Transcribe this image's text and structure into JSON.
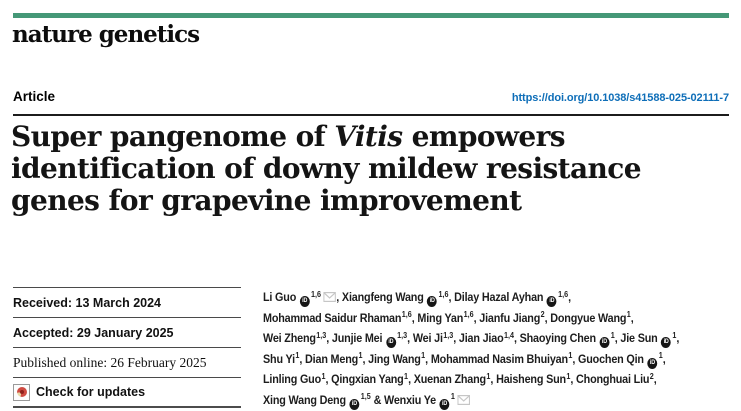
{
  "journal": {
    "masthead": "nature genetics"
  },
  "header": {
    "article_type": "Article",
    "doi": "https://doi.org/10.1038/s41588-025-02111-7"
  },
  "title": {
    "lines": [
      {
        "pre": "Super pangenome of ",
        "italic": "Vitis",
        "post": " empowers"
      },
      {
        "pre": "identification of downy mildew resistance",
        "italic": "",
        "post": ""
      },
      {
        "pre": "genes for grapevine improvement",
        "italic": "",
        "post": ""
      }
    ]
  },
  "meta": {
    "received": "Received: 13 March 2024",
    "accepted": "Accepted: 29 January 2025",
    "published_online": "Published online: 26 February 2025",
    "check_updates": "Check for updates"
  },
  "icons": {
    "orcid": "orcid-icon",
    "email": "email-icon",
    "crossmark": "crossmark-icon"
  },
  "authors": {
    "lines": [
      [
        {
          "name": "Li Guo",
          "orcid": true,
          "sup": "1,6",
          "mail": true
        },
        {
          "name": "Xiangfeng Wang",
          "orcid": true,
          "sup": "1,6",
          "mail": false
        },
        {
          "name": "Dilay Hazal Ayhan",
          "orcid": true,
          "sup": "1,6",
          "mail": false
        }
      ],
      [
        {
          "name": "Mohammad Saidur Rhaman",
          "orcid": false,
          "sup": "1,6",
          "mail": false
        },
        {
          "name": "Ming Yan",
          "orcid": false,
          "sup": "1,6",
          "mail": false
        },
        {
          "name": "Jianfu Jiang",
          "orcid": false,
          "sup": "2",
          "mail": false
        },
        {
          "name": "Dongyue Wang",
          "orcid": false,
          "sup": "1",
          "mail": false
        }
      ],
      [
        {
          "name": "Wei Zheng",
          "orcid": false,
          "sup": "1,3",
          "mail": false
        },
        {
          "name": "Junjie Mei",
          "orcid": true,
          "sup": "1,3",
          "mail": false
        },
        {
          "name": "Wei Ji",
          "orcid": false,
          "sup": "1,3",
          "mail": false
        },
        {
          "name": "Jian Jiao",
          "orcid": false,
          "sup": "1,4",
          "mail": false
        },
        {
          "name": "Shaoying Chen",
          "orcid": true,
          "sup": "1",
          "mail": false
        },
        {
          "name": "Jie Sun",
          "orcid": true,
          "sup": "1",
          "mail": false
        }
      ],
      [
        {
          "name": "Shu Yi",
          "orcid": false,
          "sup": "1",
          "mail": false
        },
        {
          "name": "Dian Meng",
          "orcid": false,
          "sup": "1",
          "mail": false
        },
        {
          "name": "Jing Wang",
          "orcid": false,
          "sup": "1",
          "mail": false
        },
        {
          "name": "Mohammad Nasim Bhuiyan",
          "orcid": false,
          "sup": "1",
          "mail": false
        },
        {
          "name": "Guochen Qin",
          "orcid": true,
          "sup": "1",
          "mail": false
        }
      ],
      [
        {
          "name": "Linling Guo",
          "orcid": false,
          "sup": "1",
          "mail": false
        },
        {
          "name": "Qingxian Yang",
          "orcid": false,
          "sup": "1",
          "mail": false
        },
        {
          "name": "Xuenan Zhang",
          "orcid": false,
          "sup": "1",
          "mail": false
        },
        {
          "name": "Haisheng Sun",
          "orcid": false,
          "sup": "1",
          "mail": false
        },
        {
          "name": "Chonghuai Liu",
          "orcid": false,
          "sup": "2",
          "mail": false
        }
      ],
      [
        {
          "name": "Xing Wang Deng",
          "orcid": true,
          "sup": "1,5",
          "mail": false
        },
        {
          "name": "Wenxiu Ye",
          "orcid": true,
          "sup": "1",
          "mail": true
        }
      ]
    ]
  },
  "colors": {
    "brand_green": "#459877",
    "link_blue": "#0e6eb8",
    "rule_dark": "#1c1c1c"
  }
}
